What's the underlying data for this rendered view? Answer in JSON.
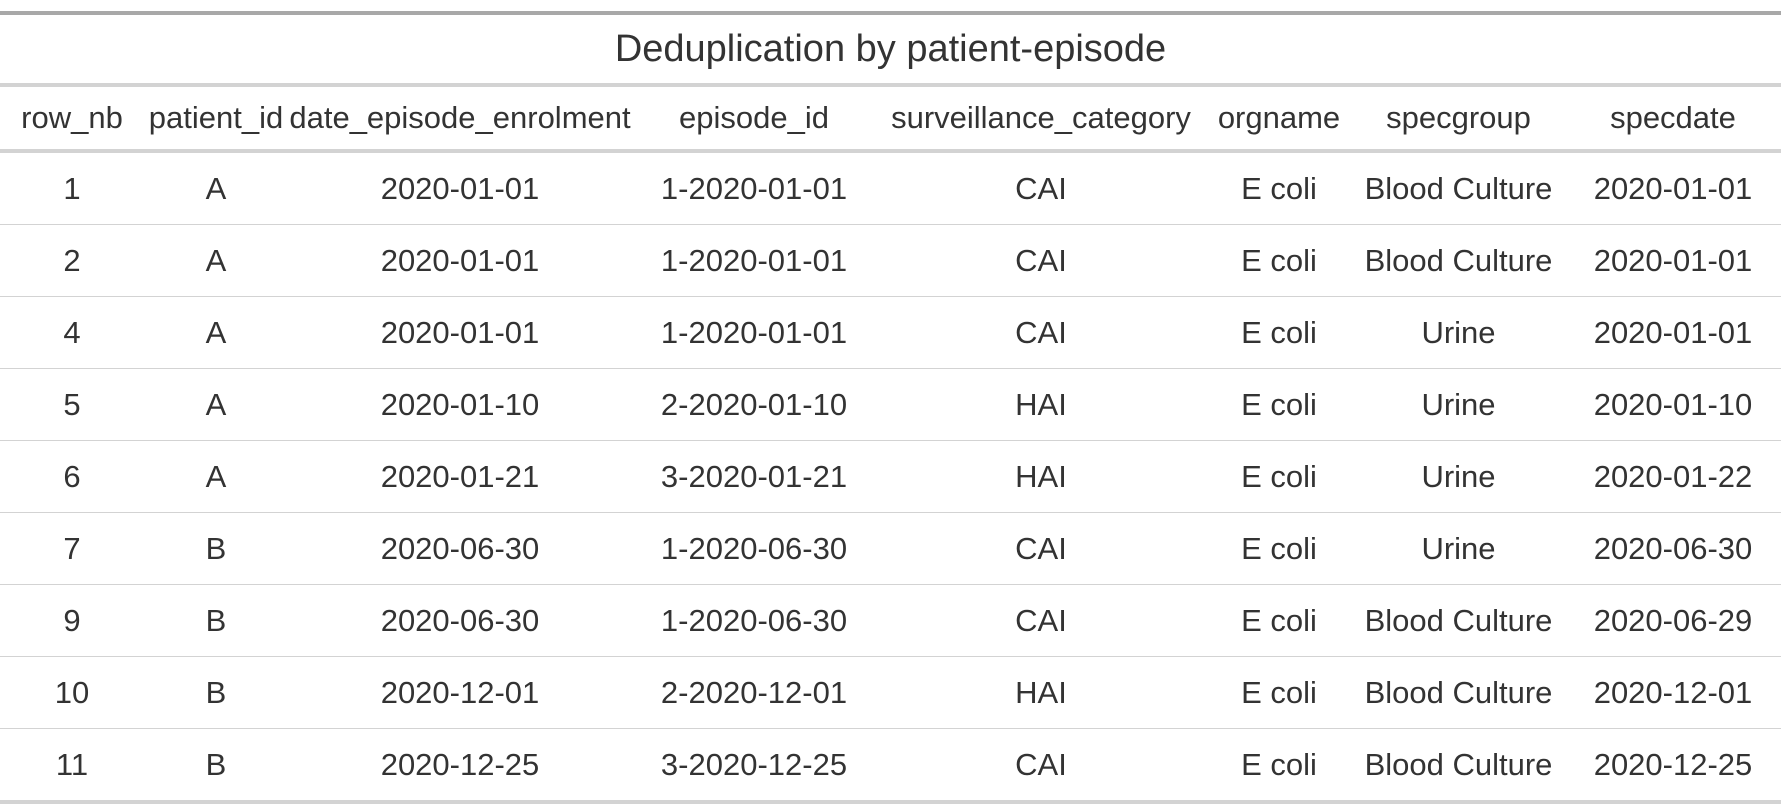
{
  "table": {
    "title": "Deduplication by patient-episode",
    "columns": [
      "row_nb",
      "patient_id",
      "date_episode_enrolment",
      "episode_id",
      "surveillance_category",
      "orgname",
      "specgroup",
      "specdate"
    ],
    "rows": [
      [
        "1",
        "A",
        "2020-01-01",
        "1-2020-01-01",
        "CAI",
        "E coli",
        "Blood Culture",
        "2020-01-01"
      ],
      [
        "2",
        "A",
        "2020-01-01",
        "1-2020-01-01",
        "CAI",
        "E coli",
        "Blood Culture",
        "2020-01-01"
      ],
      [
        "4",
        "A",
        "2020-01-01",
        "1-2020-01-01",
        "CAI",
        "E coli",
        "Urine",
        "2020-01-01"
      ],
      [
        "5",
        "A",
        "2020-01-10",
        "2-2020-01-10",
        "HAI",
        "E coli",
        "Urine",
        "2020-01-10"
      ],
      [
        "6",
        "A",
        "2020-01-21",
        "3-2020-01-21",
        "HAI",
        "E coli",
        "Urine",
        "2020-01-22"
      ],
      [
        "7",
        "B",
        "2020-06-30",
        "1-2020-06-30",
        "CAI",
        "E coli",
        "Urine",
        "2020-06-30"
      ],
      [
        "9",
        "B",
        "2020-06-30",
        "1-2020-06-30",
        "CAI",
        "E coli",
        "Blood Culture",
        "2020-06-29"
      ],
      [
        "10",
        "B",
        "2020-12-01",
        "2-2020-12-01",
        "HAI",
        "E coli",
        "Blood Culture",
        "2020-12-01"
      ],
      [
        "11",
        "B",
        "2020-12-25",
        "3-2020-12-25",
        "CAI",
        "E coli",
        "Blood Culture",
        "2020-12-25"
      ]
    ]
  },
  "colors": {
    "text": "#333333",
    "rule_dark": "#a8a8a8",
    "rule_light": "#d3d3d3"
  }
}
